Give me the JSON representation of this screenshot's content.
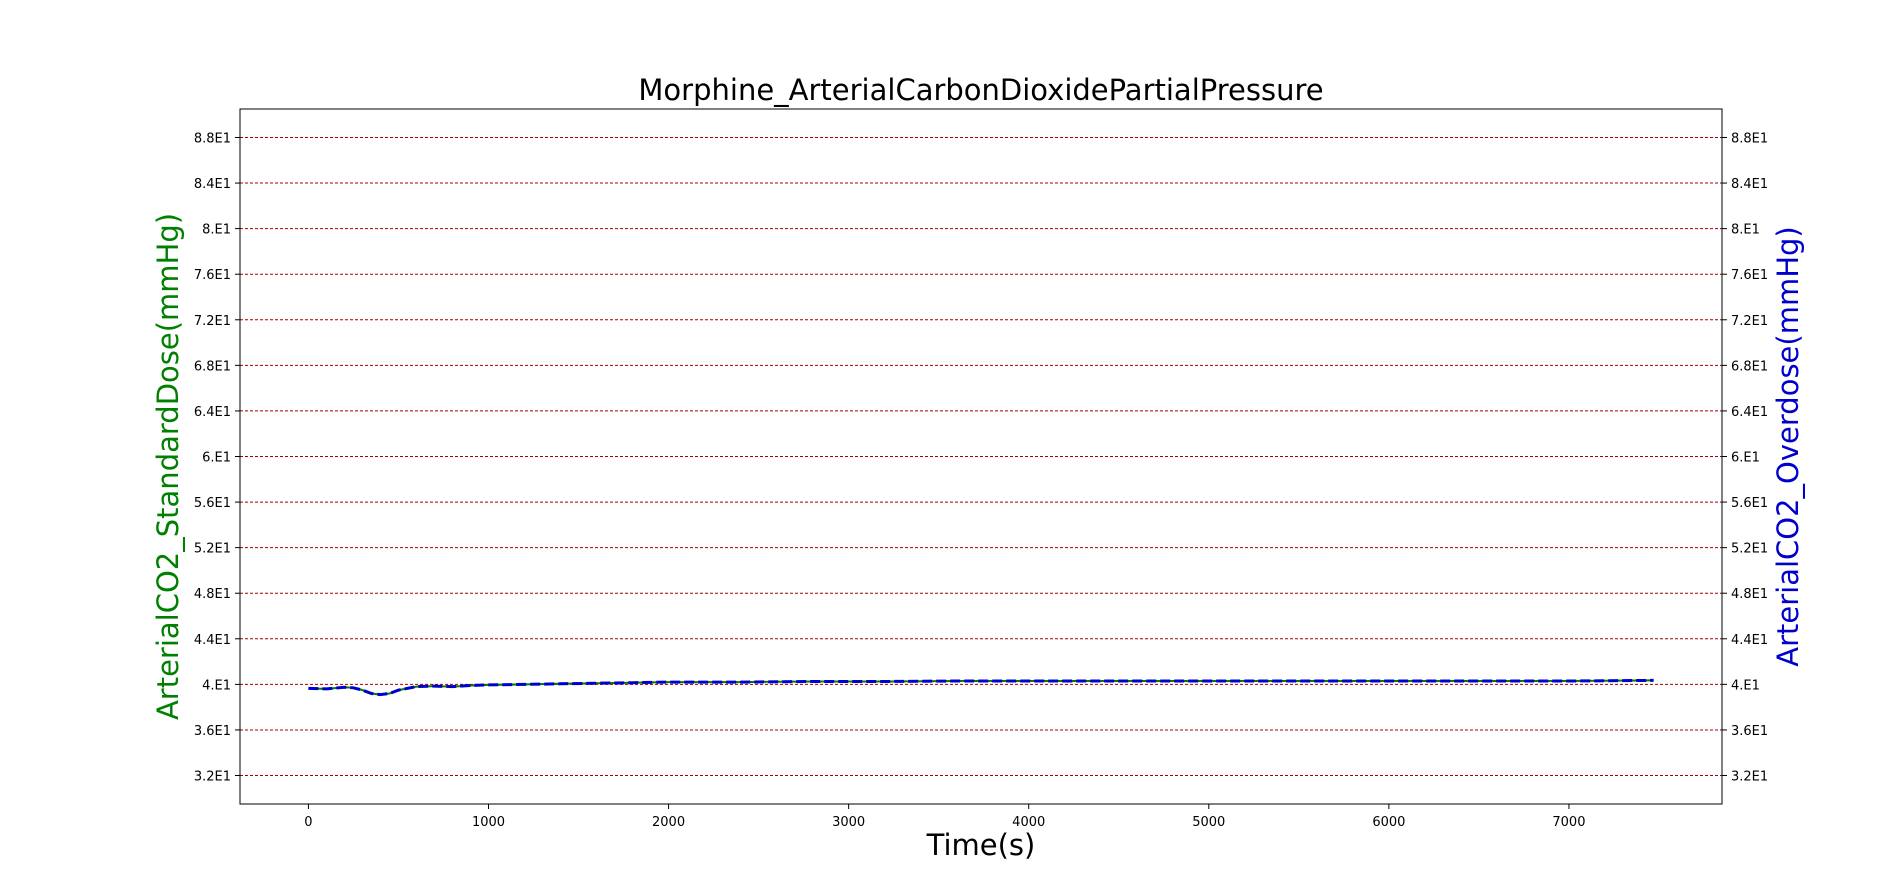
{
  "chart_data": {
    "type": "line",
    "title": "Morphine_ArterialCarbonDioxidePartialPressure",
    "xlabel": "Time(s)",
    "ylabel_left": "ArterialCO2_StandardDose(mmHg)",
    "ylabel_right": "ArterialCO2_Overdose(mmHg)",
    "xlim": [
      -380,
      7850
    ],
    "ylim": [
      29.5,
      90.5
    ],
    "x_ticks": [
      0,
      1000,
      2000,
      3000,
      4000,
      5000,
      6000,
      7000
    ],
    "x_tick_labels": [
      "0",
      "1000",
      "2000",
      "3000",
      "4000",
      "5000",
      "6000",
      "7000"
    ],
    "y_ticks": [
      32,
      36,
      40,
      44,
      48,
      52,
      56,
      60,
      64,
      68,
      72,
      76,
      80,
      84,
      88
    ],
    "y_tick_labels": [
      "3.2E1",
      "3.6E1",
      "4.E1",
      "4.4E1",
      "4.8E1",
      "5.2E1",
      "5.6E1",
      "6.E1",
      "6.4E1",
      "6.8E1",
      "7.2E1",
      "7.6E1",
      "8.E1",
      "8.4E1",
      "8.8E1"
    ],
    "grid": "horizontal dashed",
    "colors": {
      "grid": "#a40000",
      "left_label": "#008000",
      "right_label": "#0000cc",
      "standard_series": "#008000",
      "overdose_series": "#0000cc"
    },
    "series": [
      {
        "axis": "left",
        "style": "solid",
        "x": [
          0,
          100,
          200,
          250,
          300,
          350,
          400,
          450,
          500,
          600,
          700,
          800,
          900,
          1000,
          1200,
          1400,
          1600,
          1800,
          2000,
          2400,
          2800,
          3200,
          3600,
          4000,
          4500,
          5000,
          5500,
          6000,
          6500,
          7000,
          7470
        ],
        "y": [
          39.65,
          39.6,
          39.75,
          39.7,
          39.5,
          39.2,
          39.1,
          39.2,
          39.5,
          39.8,
          39.85,
          39.8,
          39.9,
          39.95,
          40.0,
          40.05,
          40.1,
          40.15,
          40.2,
          40.2,
          40.25,
          40.25,
          40.3,
          40.3,
          40.3,
          40.3,
          40.3,
          40.3,
          40.3,
          40.3,
          40.35
        ]
      },
      {
        "axis": "right",
        "style": "dashed",
        "x": [
          0,
          100,
          200,
          250,
          300,
          350,
          400,
          450,
          500,
          600,
          700,
          800,
          900,
          1000,
          1200,
          1400,
          1600,
          1800,
          2000,
          2400,
          2800,
          3200,
          3600,
          4000,
          4500,
          5000,
          5500,
          6000,
          6500,
          7000,
          7470
        ],
        "y": [
          39.65,
          39.6,
          39.75,
          39.7,
          39.5,
          39.2,
          39.1,
          39.2,
          39.5,
          39.8,
          39.85,
          39.8,
          39.9,
          39.95,
          40.0,
          40.05,
          40.1,
          40.15,
          40.2,
          40.2,
          40.25,
          40.25,
          40.3,
          40.3,
          40.3,
          40.3,
          40.3,
          40.3,
          40.3,
          40.3,
          40.35
        ]
      }
    ]
  }
}
